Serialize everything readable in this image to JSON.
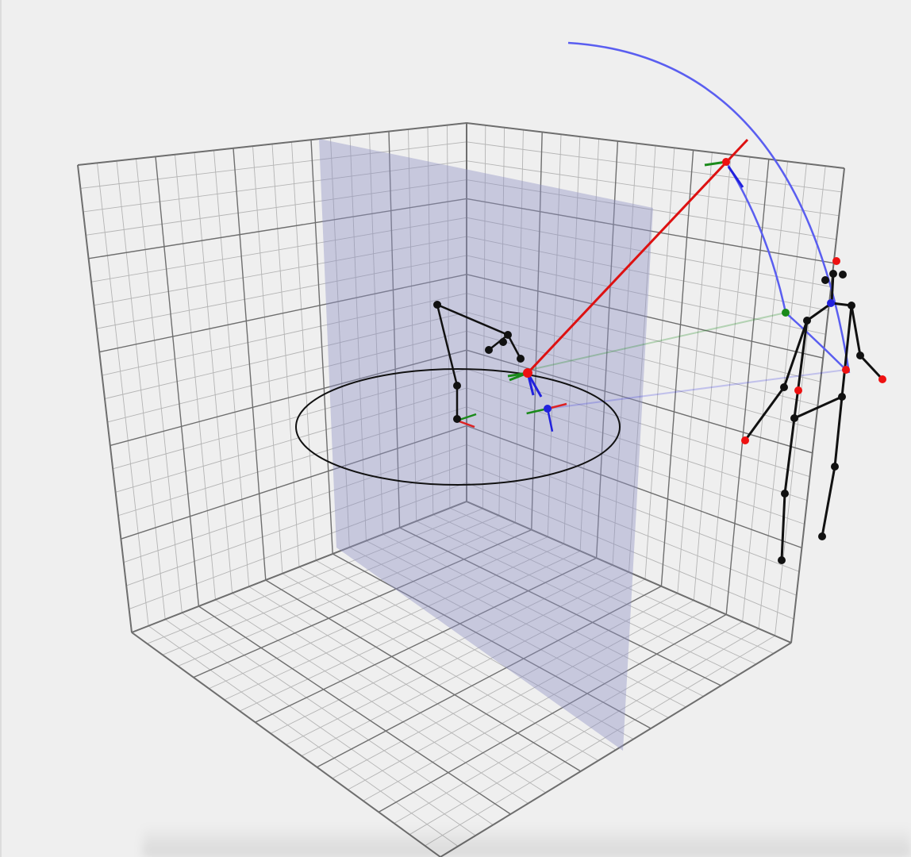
{
  "scene": {
    "background_color": "#efefef",
    "grid_color": "#6e6e6e",
    "fine_grid_color": "#b4b4b4",
    "plane_color": "#8e92c4",
    "plane_opacity": 0.42,
    "skeleton_color": "#111111",
    "joint_color": "#111111",
    "highlight_joint_color": "#ee1111",
    "ray_color": "#dd1111",
    "arc_color": "#5a5ef0",
    "axis_colors": {
      "x": "#dd2222",
      "y": "#1a8a1a",
      "z": "#2222dd"
    },
    "icons": [
      "wireframe-box",
      "vertical-plane",
      "ellipse-orbit",
      "skeleton-figure",
      "camera-ray",
      "rotation-arc",
      "coordinate-axes-gizmo"
    ]
  }
}
